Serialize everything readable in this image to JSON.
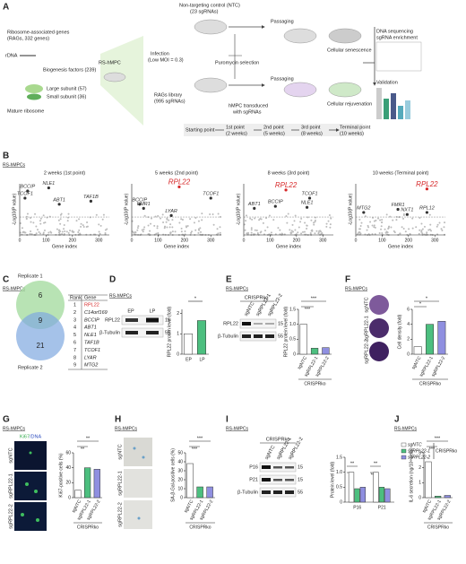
{
  "panel_labels": [
    "A",
    "B",
    "C",
    "D",
    "E",
    "F",
    "G",
    "H",
    "I",
    "J"
  ],
  "cell_label": "RS-hMPCs",
  "A": {
    "texts": [
      "Ribosome-associated genes",
      "(RAGs, 332 genes)",
      "rDNA",
      "Biogenesis factors (239)",
      "Large subunit (57)",
      "Small subunit (36)",
      "Mature ribosome",
      "RS-hMPC",
      "Non-targeting control (NTC)",
      "(23 sgRNAs)",
      "Infection",
      "(Low MOI = 0.3)",
      "RAGs library",
      "(995 sgRNAs)",
      "Puromycin selection",
      "Passaging",
      "Passaging",
      "Cellular senescence",
      "hMPC transduced",
      "with sgRNAs",
      "Cellular rejuvenation",
      "Starting point",
      "1st point",
      "(2 weeks)",
      "2nd point",
      "(5 weeks)",
      "3rd point",
      "(8 weeks)",
      "Terminal point",
      "(10 weeks)",
      "DNA sequencing",
      "sgRNA enrichment",
      "Validation"
    ]
  },
  "C": {
    "venn": [
      "Replicate 1",
      "6",
      "9",
      "21",
      "Replicate 2"
    ],
    "table_header": [
      "Rank",
      "Gene"
    ],
    "rows": [
      [
        "1",
        "RPL22"
      ],
      [
        "2",
        "C14orf169"
      ],
      [
        "3",
        "BCCIP"
      ],
      [
        "4",
        "ABT1"
      ],
      [
        "5",
        "NLE1"
      ],
      [
        "6",
        "TAF1B"
      ],
      [
        "7",
        "TCOF1"
      ],
      [
        "8",
        "LYAR"
      ],
      [
        "9",
        "MTG2"
      ]
    ]
  },
  "D": {
    "lanes": [
      "EP",
      "LP"
    ],
    "bands": [
      "RPL22",
      "β-Tubulin"
    ],
    "kda": [
      "15",
      "55"
    ],
    "sig": [
      "*"
    ]
  },
  "E": {
    "group": "CRISPRko",
    "lanes": [
      "sgNTC",
      "sgRPL22-1",
      "sgRPL22-2"
    ],
    "bands": [
      "RPL22",
      "β-Tubulin"
    ],
    "kda": [
      "15",
      "55"
    ],
    "sig": [
      "***",
      "***"
    ]
  },
  "F": {
    "lanes": [
      "sgNTC",
      "sgRPL22-1",
      "sgRPL22-2"
    ],
    "sig": [
      "*",
      "*"
    ]
  },
  "G": {
    "stain": [
      "Ki67",
      "/DNA"
    ],
    "rows": [
      "sgNTC",
      "sgRPL22-1",
      "sgRPL22-2"
    ],
    "sig": [
      "**",
      "**"
    ]
  },
  "H": {
    "rows": [
      "sgNTC",
      "sgRPL22-1",
      "sgRPL22-2"
    ],
    "sig": [
      "***",
      "***"
    ]
  },
  "I": {
    "group": "CRISPRko",
    "lanes": [
      "sgNTC",
      "sgRPL22-1",
      "sgRPL22-2"
    ],
    "bands": [
      "P16",
      "P21",
      "β-Tubulin"
    ],
    "kda": [
      "15",
      "15",
      "55"
    ],
    "sig": [
      "**",
      "*",
      "**",
      "***"
    ]
  },
  "J": {
    "sig": [
      "***",
      "***"
    ]
  },
  "chart_data": [
    {
      "type": "scatter",
      "title": "2 weeks (1st point)",
      "xlabel": "Gene index",
      "ylabel": "-Log10(P value)",
      "xlim": [
        0,
        340
      ],
      "ylim": [
        0,
        5
      ],
      "xticks": [
        0,
        100,
        200,
        300
      ],
      "point_labels": [
        "BCCIP",
        "NLE1",
        "TCOF1",
        "ABT1",
        "TAF1B"
      ],
      "x": [
        30,
        110,
        20,
        150,
        270
      ],
      "values": [
        4.3,
        4.6,
        3.6,
        3.0,
        3.3
      ],
      "colors": [
        "#333",
        "#333",
        "#333",
        "#333",
        "#333"
      ]
    },
    {
      "type": "scatter",
      "title": "5 weeks (2nd point)",
      "xlabel": "Gene index",
      "ylabel": "-Log10(P value)",
      "xlim": [
        0,
        340
      ],
      "ylim": [
        0,
        5
      ],
      "xticks": [
        0,
        100,
        200,
        300
      ],
      "point_labels": [
        "RPL22",
        "BCCIP",
        "FMR1",
        "LYAR",
        "TCOF1"
      ],
      "x": [
        180,
        30,
        45,
        150,
        300
      ],
      "values": [
        4.7,
        3.0,
        2.6,
        1.9,
        3.6
      ],
      "colors": [
        "#d62728",
        "#333",
        "#333",
        "#333",
        "#333"
      ]
    },
    {
      "type": "scatter",
      "title": "8 weeks (3rd point)",
      "xlabel": "Gene index",
      "ylabel": "-Log10(P value)",
      "xlim": [
        0,
        340
      ],
      "ylim": [
        0,
        5
      ],
      "xticks": [
        0,
        100,
        200,
        300
      ],
      "point_labels": [
        "RPL22",
        "TCOF1",
        "ABT1",
        "BCCIP",
        "NLE1"
      ],
      "x": [
        160,
        250,
        40,
        120,
        240
      ],
      "values": [
        4.4,
        3.6,
        2.6,
        2.8,
        2.7
      ],
      "colors": [
        "#d62728",
        "#333",
        "#333",
        "#333",
        "#333"
      ]
    },
    {
      "type": "scatter",
      "title": "10 weeks (Terminal point)",
      "xlabel": "Gene index",
      "ylabel": "-Log10(P value)",
      "xlim": [
        0,
        340
      ],
      "ylim": [
        0,
        5
      ],
      "xticks": [
        0,
        100,
        200,
        300
      ],
      "point_labels": [
        "RPL22",
        "MTG2",
        "FMR1",
        "NXT1",
        "RPL12"
      ],
      "x": [
        270,
        30,
        160,
        195,
        270
      ],
      "values": [
        4.5,
        2.2,
        2.5,
        2.0,
        2.2
      ],
      "colors": [
        "#d62728",
        "#333",
        "#333",
        "#333",
        "#333"
      ]
    },
    {
      "type": "bar",
      "ylabel": "RPL22 protein level (fold)",
      "categories": [
        "EP",
        "LP"
      ],
      "values": [
        1.0,
        1.65
      ],
      "colors": [
        "#ffffff",
        "#4cbf7f"
      ],
      "ylim": [
        0,
        2.2
      ],
      "yticks": [
        0,
        1,
        2
      ]
    },
    {
      "type": "bar",
      "ylabel": "RPL22 protein level (fold)",
      "group_label": "CRISPRko",
      "categories": [
        "sgNTC",
        "sgRPL22-1",
        "sgRPL22-2"
      ],
      "values": [
        1.0,
        0.2,
        0.22
      ],
      "colors": [
        "#ffffff",
        "#4cbf7f",
        "#8f8fe0"
      ],
      "ylim": [
        0,
        1.5
      ],
      "yticks": [
        0,
        {
          "value": 0.5,
          "label": "0.5"
        },
        {
          "value": 1,
          "label": "1.0"
        },
        {
          "value": 1.5,
          "label": "1.5"
        }
      ]
    },
    {
      "type": "bar",
      "ylabel": "Cell density (fold)",
      "group_label": "CRISPRko",
      "categories": [
        "sgNTC",
        "sgRPL22-1",
        "sgRPL22-2"
      ],
      "values": [
        1.0,
        4.0,
        4.4
      ],
      "colors": [
        "#ffffff",
        "#4cbf7f",
        "#8f8fe0"
      ],
      "ylim": [
        0,
        6
      ],
      "yticks": [
        0,
        2,
        4,
        6
      ]
    },
    {
      "type": "bar",
      "ylabel": "Ki67-positive cells (%)",
      "group_label": "CRISPRko",
      "categories": [
        "sgNTC",
        "sgRPL22-1",
        "sgRPL22-2"
      ],
      "values": [
        10,
        40,
        38
      ],
      "colors": [
        "#ffffff",
        "#4cbf7f",
        "#8f8fe0"
      ],
      "ylim": [
        0,
        60
      ],
      "yticks": [
        0,
        20,
        40,
        60
      ]
    },
    {
      "type": "bar",
      "ylabel": "SA-β-Gal-positive cells (%)",
      "group_label": "CRISPRko",
      "categories": [
        "sgNTC",
        "sgRPL22-1",
        "sgRPL22-2"
      ],
      "values": [
        38,
        12,
        12
      ],
      "colors": [
        "#ffffff",
        "#4cbf7f",
        "#8f8fe0"
      ],
      "ylim": [
        0,
        50
      ],
      "yticks": [
        0,
        10,
        20,
        30,
        40,
        50
      ]
    },
    {
      "type": "bar",
      "ylabel": "Protein level (fold)",
      "legend_group": "CRISPRko",
      "categories": [
        "P16",
        "P21"
      ],
      "series": [
        {
          "name": "sgNTC",
          "color": "#ffffff",
          "values": [
            1.0,
            1.0
          ]
        },
        {
          "name": "sgRPL22-1",
          "color": "#4cbf7f",
          "values": [
            0.45,
            0.5
          ]
        },
        {
          "name": "sgRPL22-2",
          "color": "#8f8fe0",
          "values": [
            0.5,
            0.45
          ]
        }
      ],
      "ylim": [
        0,
        1.5
      ],
      "yticks": [
        0,
        {
          "value": 0.5,
          "label": "0.5"
        },
        {
          "value": 1,
          "label": "1.0"
        },
        {
          "value": 1.5,
          "label": "1.5"
        }
      ]
    },
    {
      "type": "bar",
      "ylabel": "IL-6 secretion (ng/10⁶ cells)",
      "group_label": "CRISPRko",
      "categories": [
        "sgNTC",
        "sgRPL22-1",
        "sgRPL22-2"
      ],
      "values": [
        2.4,
        0.1,
        0.15
      ],
      "colors": [
        "#ffffff",
        "#4cbf7f",
        "#8f8fe0"
      ],
      "ylim": [
        0,
        3
      ],
      "yticks": [
        0,
        1,
        2,
        3
      ]
    }
  ]
}
